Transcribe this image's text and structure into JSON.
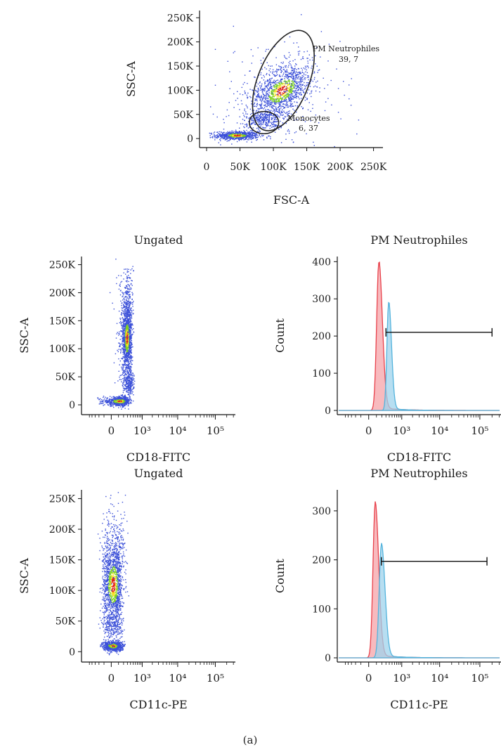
{
  "figure": {
    "caption": "(a)"
  },
  "colors": {
    "dot_blue": "#3a4fd8",
    "density_green": "#7ed321",
    "density_yellow": "#f5e12a",
    "density_red": "#e0241b",
    "gate_stroke": "#222222",
    "hist_red_fill": "#f5a3a8",
    "hist_red_line": "#e8414b",
    "hist_blue_fill": "#9fd3ec",
    "hist_blue_line": "#53b3dc"
  },
  "chart_data": [
    {
      "type": "scatter",
      "title": "",
      "xlabel": "FSC-A",
      "ylabel": "SSC-A",
      "x_ticks": [
        "0",
        "50K",
        "100K",
        "150K",
        "200K",
        "250K"
      ],
      "y_ticks": [
        "0",
        "50K",
        "100K",
        "150K",
        "200K",
        "250K"
      ],
      "xlim": [
        0,
        262000
      ],
      "ylim": [
        -10000,
        262000
      ],
      "populations": [
        {
          "name": "debris",
          "center": [
            45000,
            7000
          ],
          "spread": [
            16000,
            4500
          ],
          "count": 700,
          "core": true
        },
        {
          "name": "neutrophils",
          "center": [
            112000,
            100000
          ],
          "spread": [
            20000,
            28000
          ],
          "count": 1200,
          "core": true,
          "tilt": 0.55
        },
        {
          "name": "monocytes",
          "center": [
            86000,
            40000
          ],
          "spread": [
            14000,
            10000
          ],
          "count": 280,
          "core": false
        },
        {
          "name": "scatter",
          "center": [
            110000,
            90000
          ],
          "spread": [
            45000,
            60000
          ],
          "count": 300,
          "core": false
        }
      ],
      "gates": [
        {
          "name": "PM Neutrophiles",
          "value": "39, 7",
          "shape": "ellipse",
          "center": [
            115000,
            120000
          ],
          "radii": [
            38000,
            110000
          ],
          "rotation_deg": 22
        },
        {
          "name": "Monocytes",
          "value": "6, 37",
          "shape": "ellipse",
          "center": [
            86000,
            33000
          ],
          "radii": [
            22000,
            23000
          ],
          "rotation_deg": 0
        }
      ]
    },
    {
      "type": "scatter",
      "title": "Ungated",
      "xlabel": "CD18-FITC",
      "ylabel": "SSC-A",
      "x_ticks": [
        "0",
        "10³",
        "10⁴",
        "10⁵"
      ],
      "y_ticks": [
        "0",
        "50K",
        "100K",
        "150K",
        "200K",
        "250K"
      ],
      "x_scale": "biexponential",
      "ylim": [
        -10000,
        262000
      ],
      "populations": [
        {
          "name": "low",
          "center": [
            120,
            7000
          ],
          "spread": [
            120,
            4000
          ],
          "count": 700,
          "core": true
        },
        {
          "name": "main",
          "center": [
            280,
            120000
          ],
          "spread": [
            70,
            30000
          ],
          "count": 1300,
          "core": true
        },
        {
          "name": "mid",
          "center": [
            320,
            40000
          ],
          "spread": [
            90,
            12000
          ],
          "count": 260,
          "core": false
        },
        {
          "name": "tail",
          "center": [
            300,
            190000
          ],
          "spread": [
            100,
            35000
          ],
          "count": 220,
          "core": false
        }
      ]
    },
    {
      "type": "area",
      "title": "PM Neutrophiles",
      "xlabel": "CD18-FITC",
      "ylabel": "Count",
      "x_ticks": [
        "0",
        "10³",
        "10⁴",
        "10⁵"
      ],
      "y_ticks": [
        "0",
        "100",
        "200",
        "300",
        "400"
      ],
      "ylim": [
        0,
        410
      ],
      "series": [
        {
          "color": "red",
          "peak_x": 140,
          "peak_count": 397,
          "width": 80
        },
        {
          "color": "blue",
          "peak_x": 380,
          "peak_count": 290,
          "width": 110
        }
      ],
      "range_gate": {
        "x_from": 300,
        "x_to": 200000,
        "count": 210
      }
    },
    {
      "type": "scatter",
      "title": "Ungated",
      "xlabel": "CD11c-PE",
      "ylabel": "SSC-A",
      "x_ticks": [
        "0",
        "10³",
        "10⁴",
        "10⁵"
      ],
      "y_ticks": [
        "0",
        "50K",
        "100K",
        "150K",
        "200K",
        "250K"
      ],
      "x_scale": "biexponential",
      "ylim": [
        -10000,
        262000
      ],
      "populations": [
        {
          "name": "low",
          "center": [
            20,
            10000
          ],
          "spread": [
            70,
            4000
          ],
          "count": 700,
          "core": true
        },
        {
          "name": "main",
          "center": [
            20,
            110000
          ],
          "spread": [
            70,
            35000
          ],
          "count": 1300,
          "core": true
        },
        {
          "name": "mid",
          "center": [
            10,
            45000
          ],
          "spread": [
            70,
            12000
          ],
          "count": 240,
          "core": false
        },
        {
          "name": "tail",
          "center": [
            60,
            180000
          ],
          "spread": [
            110,
            35000
          ],
          "count": 220,
          "core": false
        }
      ]
    },
    {
      "type": "area",
      "title": "PM Neutrophiles",
      "xlabel": "CD11c-PE",
      "ylabel": "Count",
      "x_ticks": [
        "0",
        "10³",
        "10⁴",
        "10⁵"
      ],
      "y_ticks": [
        "0",
        "100",
        "200",
        "300"
      ],
      "ylim": [
        0,
        340
      ],
      "series": [
        {
          "color": "red",
          "peak_x": 80,
          "peak_count": 313,
          "width": 65
        },
        {
          "color": "blue",
          "peak_x": 190,
          "peak_count": 230,
          "width": 95
        }
      ],
      "range_gate": {
        "x_from": 190,
        "x_to": 150000,
        "count": 197
      }
    }
  ]
}
